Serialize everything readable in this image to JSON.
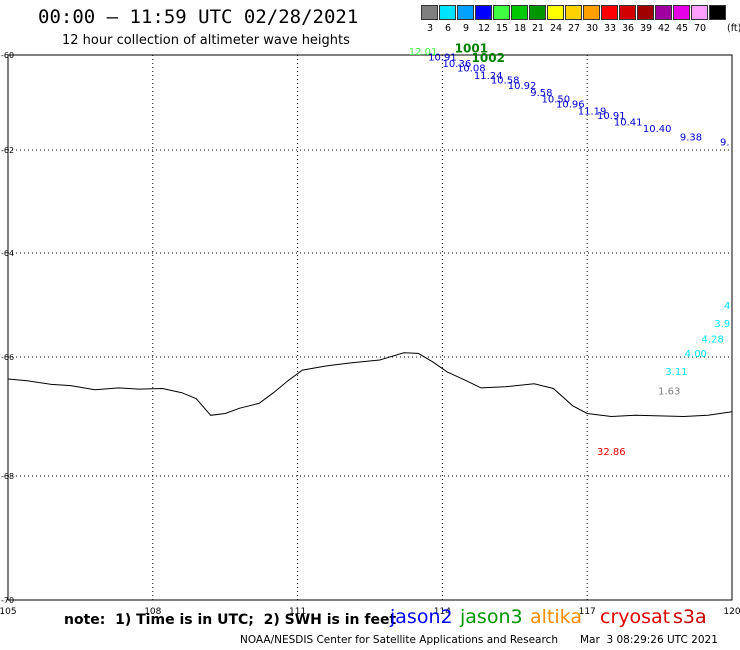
{
  "header": {
    "title": "00:00 – 11:59 UTC 02/28/2021",
    "subtitle": "12 hour collection of altimeter wave heights"
  },
  "legend_scale": {
    "unit": "(ft)",
    "items": [
      {
        "label": "3",
        "color": "#7f7f7f"
      },
      {
        "label": "6",
        "color": "#00e5ff"
      },
      {
        "label": "9",
        "color": "#00a0ff"
      },
      {
        "label": "12",
        "color": "#0000ff"
      },
      {
        "label": "15",
        "color": "#40ff40"
      },
      {
        "label": "18",
        "color": "#00c800"
      },
      {
        "label": "21",
        "color": "#009600"
      },
      {
        "label": "24",
        "color": "#ffff00"
      },
      {
        "label": "27",
        "color": "#ffd200"
      },
      {
        "label": "30",
        "color": "#ffa000"
      },
      {
        "label": "33",
        "color": "#ff0000"
      },
      {
        "label": "36",
        "color": "#d20000"
      },
      {
        "label": "39",
        "color": "#a00000"
      },
      {
        "label": "42",
        "color": "#a000a0"
      },
      {
        "label": "45",
        "color": "#e600e6"
      },
      {
        "label": "70",
        "color": "#ffa0ff"
      },
      {
        "label": "",
        "color": "#000000"
      }
    ]
  },
  "map": {
    "lon_ticks": [
      "105",
      "108",
      "111",
      "114",
      "117",
      "120"
    ],
    "lat_ticks": [
      "-60",
      "-62",
      "-64",
      "-66",
      "-68",
      "-70"
    ],
    "observations": [
      {
        "text": "12.01",
        "color": "#40ff40",
        "lon": 113.6,
        "lat": -60.0
      },
      {
        "text": "1001",
        "color": "#008000",
        "lon": 114.6,
        "lat": -59.95,
        "bold": true
      },
      {
        "text": "1002",
        "color": "#008000",
        "lon": 114.95,
        "lat": -60.15,
        "bold": true
      },
      {
        "text": "10.91",
        "color": "#0000cc",
        "lon": 114.0,
        "lat": -60.12
      },
      {
        "text": "10.36",
        "color": "#0000cc",
        "lon": 114.3,
        "lat": -60.25
      },
      {
        "text": "10.08",
        "color": "#0000cc",
        "lon": 114.6,
        "lat": -60.35
      },
      {
        "text": "11.24",
        "color": "#0000cc",
        "lon": 114.95,
        "lat": -60.5
      },
      {
        "text": "10.58",
        "color": "#0000cc",
        "lon": 115.3,
        "lat": -60.6
      },
      {
        "text": "10.92",
        "color": "#0000cc",
        "lon": 115.65,
        "lat": -60.72
      },
      {
        "text": "9.58",
        "color": "#0000cc",
        "lon": 116.05,
        "lat": -60.86
      },
      {
        "text": "10.50",
        "color": "#0000cc",
        "lon": 116.35,
        "lat": -61.0
      },
      {
        "text": "10.96",
        "color": "#0000cc",
        "lon": 116.65,
        "lat": -61.1
      },
      {
        "text": "11.19",
        "color": "#0000cc",
        "lon": 117.1,
        "lat": -61.25
      },
      {
        "text": "10.91",
        "color": "#0000cc",
        "lon": 117.5,
        "lat": -61.35
      },
      {
        "text": "10.41",
        "color": "#0000cc",
        "lon": 117.85,
        "lat": -61.48
      },
      {
        "text": "10.40",
        "color": "#0000cc",
        "lon": 118.45,
        "lat": -61.62
      },
      {
        "text": "9.38",
        "color": "#0000cc",
        "lon": 119.15,
        "lat": -61.8
      },
      {
        "text": "9.",
        "color": "#0000cc",
        "lon": 119.85,
        "lat": -61.9
      },
      {
        "text": "4",
        "color": "#00e5ff",
        "lon": 119.9,
        "lat": -65.08
      },
      {
        "text": "3.9",
        "color": "#00e5ff",
        "lon": 119.8,
        "lat": -65.42
      },
      {
        "text": "4.28",
        "color": "#00e5ff",
        "lon": 119.6,
        "lat": -65.72
      },
      {
        "text": "4.00",
        "color": "#00e5ff",
        "lon": 119.25,
        "lat": -66.0
      },
      {
        "text": "3.11",
        "color": "#00e5ff",
        "lon": 118.85,
        "lat": -66.3
      },
      {
        "text": "1.63",
        "color": "#7f7f7f",
        "lon": 118.7,
        "lat": -66.63
      },
      {
        "text": "32.86",
        "color": "#e00000",
        "lon": 117.5,
        "lat": -67.65
      }
    ],
    "coastline": [
      [
        105.0,
        -66.37
      ],
      [
        105.4,
        -66.4
      ],
      [
        105.9,
        -66.46
      ],
      [
        106.3,
        -66.48
      ],
      [
        106.8,
        -66.55
      ],
      [
        107.3,
        -66.52
      ],
      [
        107.7,
        -66.54
      ],
      [
        108.2,
        -66.53
      ],
      [
        108.6,
        -66.6
      ],
      [
        108.9,
        -66.7
      ],
      [
        109.2,
        -66.98
      ],
      [
        109.5,
        -66.95
      ],
      [
        109.8,
        -66.86
      ],
      [
        110.2,
        -66.78
      ],
      [
        110.5,
        -66.6
      ],
      [
        110.8,
        -66.4
      ],
      [
        111.1,
        -66.22
      ],
      [
        111.6,
        -66.15
      ],
      [
        112.1,
        -66.1
      ],
      [
        112.7,
        -66.05
      ],
      [
        113.2,
        -65.92
      ],
      [
        113.5,
        -65.93
      ],
      [
        113.8,
        -66.08
      ],
      [
        114.1,
        -66.25
      ],
      [
        114.5,
        -66.4
      ],
      [
        114.8,
        -66.52
      ],
      [
        115.3,
        -66.5
      ],
      [
        115.9,
        -66.45
      ],
      [
        116.3,
        -66.53
      ],
      [
        116.7,
        -66.82
      ],
      [
        117.0,
        -66.95
      ],
      [
        117.5,
        -67.0
      ],
      [
        118.0,
        -66.98
      ],
      [
        118.5,
        -66.99
      ],
      [
        119.0,
        -67.0
      ],
      [
        119.5,
        -66.98
      ],
      [
        120.0,
        -66.92
      ]
    ]
  },
  "footer": {
    "note": "note:  1) Time is in UTC;  2) SWH is in feet",
    "satellites": [
      {
        "name": "jason2",
        "color": "#0000ff"
      },
      {
        "name": "jason3",
        "color": "#009600"
      },
      {
        "name": "altika",
        "color": "#ff8c00"
      },
      {
        "name": "cryosat",
        "color": "#e00000"
      },
      {
        "name": "s3a",
        "color": "#c80000"
      }
    ],
    "credit": "NOAA/NESDIS Center for Satellite Applications and Research",
    "timestamp": "Mar  3 08:29:26 UTC 2021"
  }
}
